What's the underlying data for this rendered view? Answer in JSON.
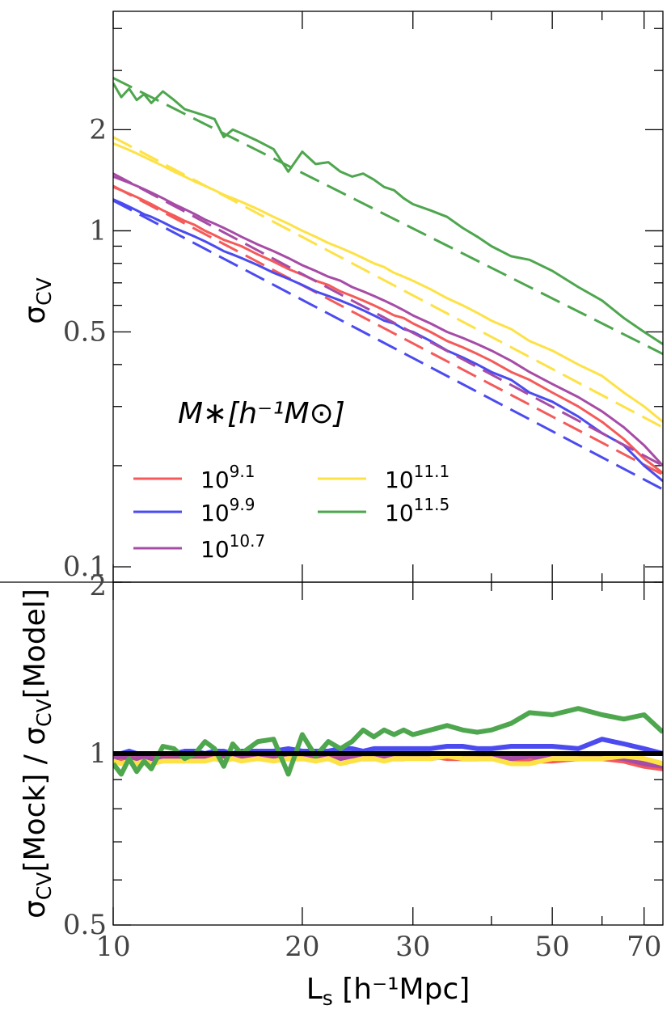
{
  "chart_data": [
    {
      "type": "line",
      "panel": "top",
      "xscale": "log",
      "yscale": "log",
      "xlim": [
        10,
        75
      ],
      "ylim": [
        0.09,
        4.5
      ],
      "ylabel_main": "σ",
      "ylabel_sub": "CV",
      "yticks": [
        {
          "value": 0.1,
          "label": "0.1"
        },
        {
          "value": 0.5,
          "label": "0.5"
        },
        {
          "value": 1,
          "label": "1"
        },
        {
          "value": 2,
          "label": "2"
        }
      ],
      "legend_title": "M∗[h⁻¹M⊙]",
      "legend_location": "lower-left",
      "x_mock": [
        10,
        10.3,
        10.6,
        10.9,
        11.2,
        11.5,
        12,
        12.5,
        13,
        13.5,
        14,
        14.5,
        15,
        15.5,
        16,
        17,
        18,
        19,
        20,
        21,
        22,
        23,
        24,
        25,
        26,
        27,
        28,
        29,
        30,
        32,
        34,
        36,
        38,
        40,
        43,
        46,
        50,
        55,
        60,
        65,
        70,
        75
      ],
      "x_model": [
        10,
        75
      ],
      "series": [
        {
          "name": "10^9.1",
          "label_base": "10",
          "label_exp": "9.1",
          "color": "#f55a5a",
          "model": [
            1.36,
            0.188
          ],
          "mock": [
            1.35,
            1.32,
            1.29,
            1.26,
            1.23,
            1.2,
            1.15,
            1.11,
            1.07,
            1.04,
            1.0,
            0.97,
            0.94,
            0.92,
            0.9,
            0.85,
            0.81,
            0.77,
            0.74,
            0.71,
            0.69,
            0.66,
            0.64,
            0.62,
            0.6,
            0.58,
            0.56,
            0.55,
            0.53,
            0.5,
            0.47,
            0.45,
            0.43,
            0.41,
            0.38,
            0.36,
            0.33,
            0.3,
            0.27,
            0.24,
            0.21,
            0.19
          ]
        },
        {
          "name": "10^9.9",
          "label_base": "10",
          "label_exp": "9.9",
          "color": "#4b4bf0",
          "model": [
            1.23,
            0.17
          ],
          "mock": [
            1.24,
            1.21,
            1.18,
            1.15,
            1.12,
            1.1,
            1.06,
            1.02,
            0.99,
            0.96,
            0.93,
            0.9,
            0.87,
            0.85,
            0.83,
            0.79,
            0.75,
            0.72,
            0.69,
            0.66,
            0.64,
            0.62,
            0.6,
            0.58,
            0.56,
            0.54,
            0.53,
            0.51,
            0.5,
            0.47,
            0.44,
            0.42,
            0.4,
            0.38,
            0.36,
            0.33,
            0.31,
            0.28,
            0.25,
            0.23,
            0.2,
            0.18
          ]
        },
        {
          "name": "10^10.7",
          "label_base": "10",
          "label_exp": "10.7",
          "color": "#a64ca6",
          "model": [
            1.48,
            0.2
          ],
          "mock": [
            1.45,
            1.42,
            1.39,
            1.36,
            1.33,
            1.3,
            1.25,
            1.2,
            1.16,
            1.12,
            1.08,
            1.05,
            1.02,
            0.99,
            0.96,
            0.91,
            0.87,
            0.83,
            0.79,
            0.76,
            0.73,
            0.71,
            0.68,
            0.66,
            0.64,
            0.62,
            0.6,
            0.58,
            0.56,
            0.53,
            0.5,
            0.48,
            0.46,
            0.44,
            0.41,
            0.38,
            0.35,
            0.32,
            0.29,
            0.26,
            0.23,
            0.2
          ]
        },
        {
          "name": "10^11.1",
          "label_base": "10",
          "label_exp": "11.1",
          "color": "#fde246",
          "model": [
            1.9,
            0.26
          ],
          "mock": [
            1.82,
            1.78,
            1.74,
            1.7,
            1.66,
            1.62,
            1.56,
            1.5,
            1.45,
            1.4,
            1.36,
            1.32,
            1.28,
            1.25,
            1.22,
            1.16,
            1.1,
            1.05,
            1.0,
            0.96,
            0.92,
            0.89,
            0.86,
            0.83,
            0.8,
            0.78,
            0.75,
            0.73,
            0.71,
            0.67,
            0.63,
            0.6,
            0.57,
            0.54,
            0.51,
            0.47,
            0.44,
            0.4,
            0.37,
            0.33,
            0.3,
            0.27
          ]
        },
        {
          "name": "10^11.5",
          "label_base": "10",
          "label_exp": "11.5",
          "color": "#4ea64e",
          "model": [
            2.85,
            0.43
          ],
          "mock": [
            2.75,
            2.5,
            2.65,
            2.45,
            2.55,
            2.4,
            2.6,
            2.45,
            2.3,
            2.25,
            2.2,
            2.15,
            1.9,
            2.0,
            1.95,
            1.85,
            1.75,
            1.5,
            1.72,
            1.58,
            1.6,
            1.5,
            1.45,
            1.48,
            1.42,
            1.35,
            1.32,
            1.25,
            1.2,
            1.15,
            1.1,
            1.02,
            0.96,
            0.9,
            0.84,
            0.82,
            0.76,
            0.68,
            0.62,
            0.55,
            0.5,
            0.46
          ]
        }
      ]
    },
    {
      "type": "line",
      "panel": "bottom",
      "xscale": "log",
      "yscale": "log",
      "xlim": [
        10,
        75
      ],
      "ylim": [
        0.5,
        2
      ],
      "xlabel_main": "L",
      "xlabel_sub": "s",
      "xlabel_rest": " [h⁻¹Mpc]",
      "ylabel_parts": [
        "σ",
        "CV",
        "[Mock] / σ",
        "CV",
        "[Model]"
      ],
      "xticks": [
        {
          "value": 10,
          "label": "10"
        },
        {
          "value": 20,
          "label": "20"
        },
        {
          "value": 30,
          "label": "30"
        },
        {
          "value": 50,
          "label": "50"
        },
        {
          "value": 70,
          "label": "70"
        }
      ],
      "yticks": [
        {
          "value": 0.5,
          "label": "0.5"
        },
        {
          "value": 1,
          "label": "1"
        },
        {
          "value": 2,
          "label": "2"
        }
      ],
      "reference_line": 1.0,
      "x": [
        10,
        10.3,
        10.6,
        10.9,
        11.2,
        11.5,
        12,
        12.5,
        13,
        13.5,
        14,
        14.5,
        15,
        15.5,
        16,
        17,
        18,
        19,
        20,
        21,
        22,
        23,
        24,
        25,
        26,
        27,
        28,
        29,
        30,
        32,
        34,
        36,
        38,
        40,
        43,
        46,
        50,
        55,
        60,
        65,
        70,
        75
      ],
      "series": [
        {
          "name": "10^9.1",
          "color": "#f55a5a",
          "values": [
            0.99,
            0.98,
            0.99,
            0.98,
            0.99,
            0.98,
            0.99,
            0.98,
            0.99,
            0.99,
            0.98,
            0.99,
            0.99,
            0.98,
            0.99,
            0.99,
            0.99,
            0.98,
            0.99,
            0.99,
            0.98,
            0.99,
            0.99,
            0.98,
            0.99,
            0.99,
            0.99,
            0.98,
            0.99,
            0.99,
            0.98,
            0.98,
            0.98,
            0.98,
            0.98,
            0.97,
            0.97,
            0.98,
            0.98,
            0.97,
            0.95,
            0.94
          ]
        },
        {
          "name": "10^9.9",
          "color": "#4b4bf0",
          "values": [
            1.0,
            1.0,
            1.01,
            1.0,
            1.0,
            1.0,
            1.0,
            1.0,
            1.01,
            1.01,
            1.0,
            1.01,
            1.01,
            1.0,
            1.01,
            1.01,
            1.01,
            1.02,
            1.01,
            1.01,
            1.01,
            1.02,
            1.02,
            1.01,
            1.02,
            1.02,
            1.02,
            1.02,
            1.02,
            1.02,
            1.03,
            1.03,
            1.02,
            1.02,
            1.03,
            1.03,
            1.03,
            1.02,
            1.06,
            1.04,
            1.02,
            1.0
          ]
        },
        {
          "name": "10^10.7",
          "color": "#a64ca6",
          "values": [
            0.98,
            0.99,
            0.98,
            0.98,
            0.99,
            0.98,
            0.98,
            0.98,
            0.99,
            0.98,
            0.98,
            0.98,
            0.99,
            0.98,
            0.99,
            0.98,
            0.99,
            0.98,
            0.98,
            0.99,
            0.98,
            0.98,
            0.99,
            0.98,
            0.98,
            0.99,
            0.98,
            0.98,
            0.99,
            0.98,
            0.99,
            0.98,
            0.98,
            0.99,
            0.98,
            0.99,
            0.98,
            0.98,
            0.99,
            0.98,
            0.96,
            0.95
          ]
        },
        {
          "name": "10^11.1",
          "color": "#fde246",
          "values": [
            0.97,
            0.96,
            0.97,
            0.96,
            0.97,
            0.96,
            0.97,
            0.97,
            0.97,
            0.97,
            0.97,
            0.98,
            0.97,
            0.98,
            0.97,
            0.98,
            0.97,
            0.98,
            0.98,
            0.97,
            0.98,
            0.96,
            0.97,
            0.98,
            0.98,
            0.97,
            0.98,
            0.98,
            0.98,
            0.98,
            0.99,
            0.98,
            0.98,
            0.98,
            0.96,
            0.96,
            0.98,
            0.98,
            0.98,
            0.99,
            0.98,
            0.96
          ]
        },
        {
          "name": "10^11.5",
          "color": "#4ea64e",
          "values": [
            0.96,
            0.92,
            0.98,
            0.93,
            0.97,
            0.94,
            1.03,
            1.02,
            0.98,
            1.0,
            1.05,
            1.02,
            0.95,
            1.04,
            1.0,
            1.05,
            1.06,
            0.92,
            1.08,
            0.99,
            1.05,
            1.02,
            1.05,
            1.1,
            1.07,
            1.1,
            1.08,
            1.1,
            1.08,
            1.1,
            1.12,
            1.1,
            1.09,
            1.1,
            1.13,
            1.18,
            1.17,
            1.2,
            1.17,
            1.15,
            1.17,
            1.09
          ]
        }
      ]
    }
  ]
}
